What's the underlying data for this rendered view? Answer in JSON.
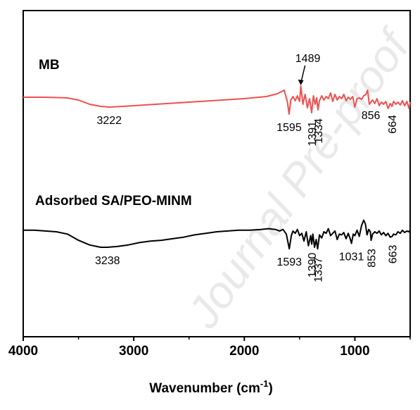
{
  "chart_data": {
    "type": "line",
    "xlabel": "Wavenumber (cm",
    "xlabel_sup": "-1",
    "xlabel_close": ")",
    "xlim": [
      4000,
      500
    ],
    "x_ticks": [
      4000,
      3000,
      2000,
      1000
    ],
    "x_tick_labels": [
      "4000",
      "3000",
      "2000",
      "1000"
    ],
    "ylabel": "",
    "grid": false,
    "legend": "none",
    "series": [
      {
        "name": "MB",
        "color": "#f05050",
        "x": [
          4000,
          3800,
          3600,
          3500,
          3400,
          3300,
          3222,
          3100,
          3000,
          2800,
          2600,
          2400,
          2200,
          2000,
          1800,
          1700,
          1640,
          1610,
          1595,
          1580,
          1560,
          1540,
          1520,
          1500,
          1489,
          1470,
          1450,
          1430,
          1410,
          1391,
          1375,
          1360,
          1345,
          1334,
          1320,
          1300,
          1280,
          1260,
          1240,
          1220,
          1200,
          1180,
          1160,
          1140,
          1120,
          1100,
          1080,
          1060,
          1040,
          1020,
          1000,
          980,
          960,
          940,
          920,
          900,
          885,
          870,
          856,
          840,
          820,
          800,
          780,
          760,
          740,
          720,
          700,
          680,
          664,
          650,
          630,
          610,
          590,
          570,
          550,
          530,
          510,
          500
        ],
        "y": [
          0.62,
          0.62,
          0.61,
          0.58,
          0.52,
          0.49,
          0.48,
          0.49,
          0.5,
          0.52,
          0.54,
          0.56,
          0.58,
          0.6,
          0.63,
          0.67,
          0.72,
          0.55,
          0.38,
          0.58,
          0.63,
          0.57,
          0.64,
          0.56,
          0.78,
          0.52,
          0.66,
          0.47,
          0.6,
          0.4,
          0.64,
          0.52,
          0.61,
          0.44,
          0.57,
          0.64,
          0.58,
          0.63,
          0.6,
          0.68,
          0.56,
          0.66,
          0.58,
          0.63,
          0.6,
          0.66,
          0.57,
          0.62,
          0.59,
          0.63,
          0.48,
          0.6,
          0.61,
          0.59,
          0.64,
          0.66,
          0.72,
          0.52,
          0.55,
          0.58,
          0.53,
          0.6,
          0.5,
          0.55,
          0.52,
          0.56,
          0.46,
          0.53,
          0.49,
          0.56,
          0.52,
          0.55,
          0.51,
          0.57,
          0.5,
          0.56,
          0.46,
          0.55
        ]
      },
      {
        "name": "Adsorbed SA/PEO-MINM",
        "color": "#000000",
        "x": [
          4000,
          3900,
          3800,
          3700,
          3600,
          3500,
          3400,
          3300,
          3238,
          3150,
          3050,
          2950,
          2850,
          2750,
          2650,
          2550,
          2450,
          2350,
          2250,
          2150,
          2050,
          1950,
          1850,
          1780,
          1720,
          1680,
          1650,
          1620,
          1593,
          1575,
          1560,
          1540,
          1520,
          1500,
          1480,
          1460,
          1440,
          1420,
          1400,
          1390,
          1380,
          1365,
          1350,
          1337,
          1320,
          1300,
          1280,
          1260,
          1240,
          1220,
          1200,
          1180,
          1160,
          1140,
          1120,
          1100,
          1080,
          1060,
          1040,
          1031,
          1015,
          1000,
          980,
          960,
          940,
          920,
          905,
          890,
          875,
          860,
          853,
          840,
          820,
          800,
          780,
          760,
          740,
          720,
          700,
          680,
          663,
          650,
          630,
          610,
          590,
          570,
          550,
          530,
          510,
          500
        ],
        "y": [
          0.62,
          0.62,
          0.61,
          0.6,
          0.57,
          0.49,
          0.43,
          0.4,
          0.4,
          0.41,
          0.43,
          0.46,
          0.48,
          0.49,
          0.51,
          0.53,
          0.56,
          0.58,
          0.6,
          0.61,
          0.62,
          0.62,
          0.63,
          0.64,
          0.63,
          0.61,
          0.63,
          0.57,
          0.38,
          0.55,
          0.61,
          0.58,
          0.63,
          0.55,
          0.58,
          0.48,
          0.6,
          0.42,
          0.55,
          0.44,
          0.57,
          0.4,
          0.5,
          0.38,
          0.56,
          0.52,
          0.6,
          0.58,
          0.64,
          0.55,
          0.58,
          0.61,
          0.5,
          0.57,
          0.56,
          0.59,
          0.51,
          0.58,
          0.5,
          0.45,
          0.57,
          0.55,
          0.62,
          0.54,
          0.68,
          0.75,
          0.7,
          0.56,
          0.63,
          0.6,
          0.49,
          0.57,
          0.6,
          0.58,
          0.61,
          0.56,
          0.59,
          0.55,
          0.58,
          0.53,
          0.54,
          0.57,
          0.56,
          0.6,
          0.58,
          0.62,
          0.59,
          0.61,
          0.6,
          0.62
        ]
      }
    ],
    "annotations": [
      {
        "series": 0,
        "text": "3222",
        "x": 3222,
        "rotate": false
      },
      {
        "series": 0,
        "text": "1595",
        "x": 1595,
        "rotate": false
      },
      {
        "series": 0,
        "text": "1489",
        "x": 1489,
        "rotate": false,
        "arrow": true
      },
      {
        "series": 0,
        "text": "1391",
        "x": 1391,
        "rotate": true
      },
      {
        "series": 0,
        "text": "1334",
        "x": 1334,
        "rotate": true
      },
      {
        "series": 0,
        "text": "856",
        "x": 856,
        "rotate": false
      },
      {
        "series": 0,
        "text": "664",
        "x": 664,
        "rotate": true
      },
      {
        "series": 1,
        "text": "3238",
        "x": 3238,
        "rotate": false
      },
      {
        "series": 1,
        "text": "1593",
        "x": 1593,
        "rotate": false
      },
      {
        "series": 1,
        "text": "1390",
        "x": 1390,
        "rotate": true
      },
      {
        "series": 1,
        "text": "1337",
        "x": 1337,
        "rotate": true
      },
      {
        "series": 1,
        "text": "1031",
        "x": 1031,
        "rotate": false
      },
      {
        "series": 1,
        "text": "853",
        "x": 853,
        "rotate": true
      },
      {
        "series": 1,
        "text": "663",
        "x": 663,
        "rotate": true
      }
    ],
    "watermark": "Journal Pre-proof"
  }
}
